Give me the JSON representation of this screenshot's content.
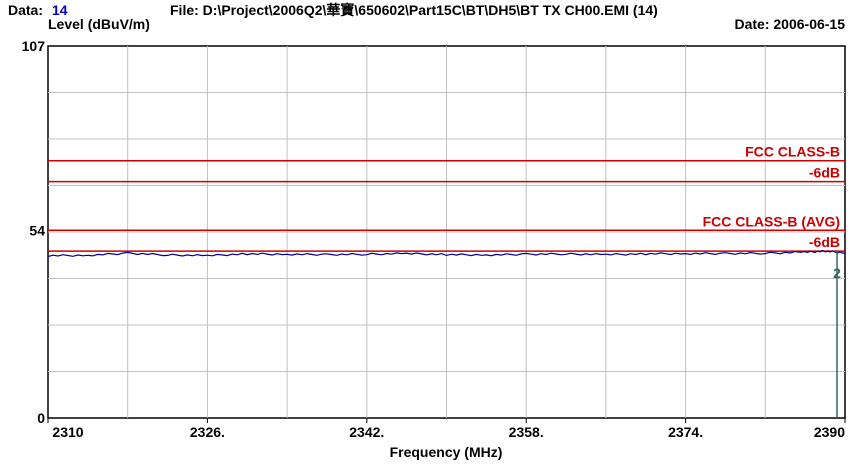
{
  "header": {
    "data_label": "Data:",
    "data_value": "14",
    "file_text": "File: D:\\Project\\2006Q2\\華寶\\650602\\Part15C\\BT\\DH5\\BT TX CH00.EMI  (14)",
    "date_text": "Date: 2006-06-15"
  },
  "colors": {
    "limit": "#cc0000",
    "trace": "#000099",
    "grid": "#c0c0c0",
    "marker_line": "#336666",
    "data_value": "#0000cc"
  },
  "chart_data": {
    "type": "line",
    "title": "",
    "xlabel": "Frequency (MHz)",
    "ylabel": "Level (dBuV/m)",
    "xlim": [
      2310,
      2390
    ],
    "ylim": [
      0,
      107
    ],
    "xticks": [
      2310,
      2326,
      2342,
      2358,
      2374,
      2390
    ],
    "xtick_labels": [
      "2310",
      "2326.",
      "2342.",
      "2358.",
      "2374.",
      "2390"
    ],
    "yticks": [
      0,
      54,
      107
    ],
    "ytick_labels": [
      "0",
      "54",
      "107"
    ],
    "grid": true,
    "x_grid_step": 8,
    "y_grid_count": 8,
    "limit_lines": [
      {
        "label": "FCC CLASS-B",
        "value": 74
      },
      {
        "label": "-6dB",
        "value": 68
      },
      {
        "label": "FCC CLASS-B (AVG)",
        "value": 54
      },
      {
        "label": "-6dB",
        "value": 48
      }
    ],
    "series": [
      {
        "values_x": [
          2310,
          2314,
          2318,
          2322,
          2326,
          2330,
          2334,
          2338,
          2342,
          2346,
          2350,
          2354,
          2358,
          2362,
          2366,
          2370,
          2374,
          2378,
          2382,
          2386,
          2388,
          2390
        ],
        "values_y": [
          46.7,
          46.8,
          47.4,
          46.9,
          46.7,
          47.2,
          47.1,
          47.0,
          47.1,
          47.3,
          47.0,
          46.9,
          47.1,
          47.2,
          47.0,
          47.2,
          47.3,
          47.3,
          47.4,
          47.7,
          48.0,
          47.5
        ]
      }
    ],
    "markers": [
      {
        "label": "2",
        "x": 2389.2
      }
    ]
  }
}
